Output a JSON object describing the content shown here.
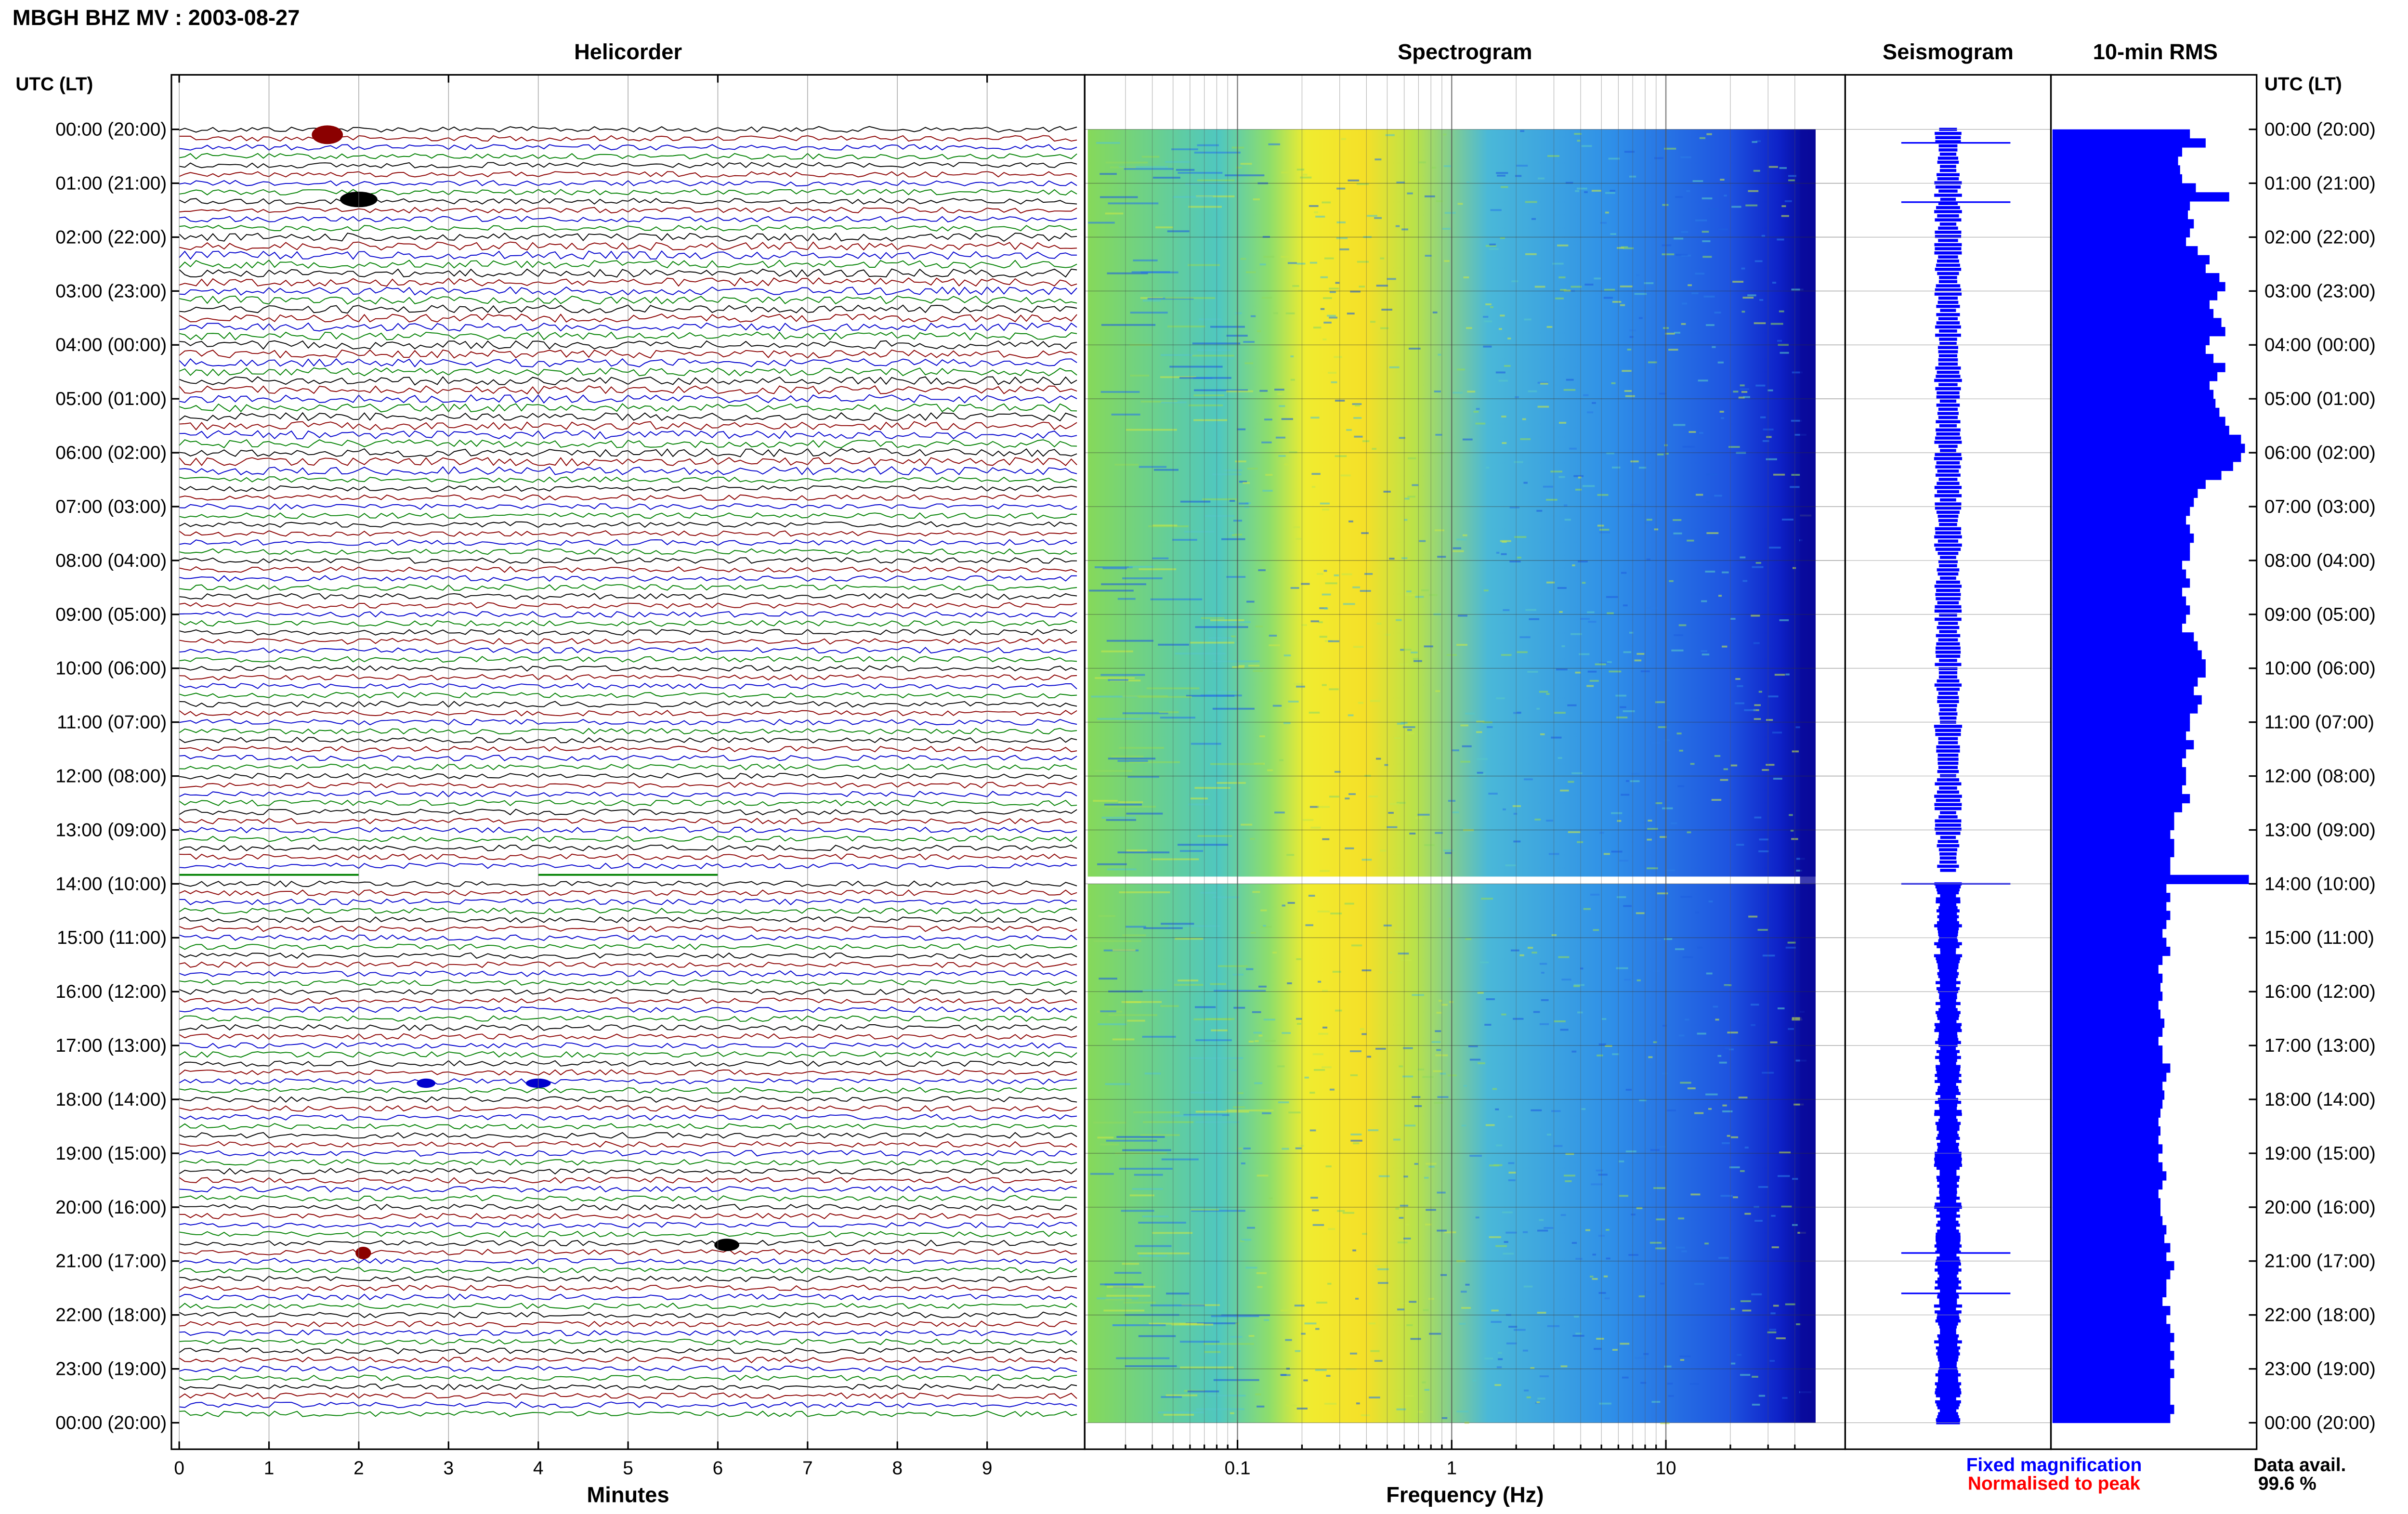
{
  "header": {
    "title": "MBGH BHZ MV : 2003-08-27",
    "utc_label_left": "UTC (LT)",
    "utc_label_right": "UTC (LT)"
  },
  "panels": {
    "helicorder": "Helicorder",
    "spectrogram": "Spectrogram",
    "seismogram": "Seismogram",
    "rms": "10-min RMS"
  },
  "axes": {
    "helicorder_xlabel": "Minutes",
    "spectrogram_xlabel": "Frequency (Hz)"
  },
  "legend": {
    "fixed": "Fixed magnification",
    "normalised": "Normalised to peak",
    "fixed_color": "#0000ff",
    "normalised_color": "#ff0000"
  },
  "availability": {
    "label": "Data avail.",
    "value": "99.6 %"
  },
  "colors": {
    "trace_cycle": [
      "#000000",
      "#8b0000",
      "#0000cd",
      "#008000"
    ],
    "rms_bar": "#0000ff",
    "seismogram": "#0000ff"
  },
  "chart_data": {
    "type": "heatmap",
    "time_ticks": [
      "00:00 (20:00)",
      "01:00 (21:00)",
      "02:00 (22:00)",
      "03:00 (23:00)",
      "04:00 (00:00)",
      "05:00 (01:00)",
      "06:00 (02:00)",
      "07:00 (03:00)",
      "08:00 (04:00)",
      "09:00 (05:00)",
      "10:00 (06:00)",
      "11:00 (07:00)",
      "12:00 (08:00)",
      "13:00 (09:00)",
      "14:00 (10:00)",
      "15:00 (11:00)",
      "16:00 (12:00)",
      "17:00 (13:00)",
      "18:00 (14:00)",
      "19:00 (15:00)",
      "20:00 (16:00)",
      "21:00 (17:00)",
      "22:00 (18:00)",
      "23:00 (19:00)",
      "00:00 (20:00)"
    ],
    "helicorder": {
      "x_ticks": [
        "0",
        "1",
        "2",
        "3",
        "4",
        "5",
        "6",
        "7",
        "8",
        "9"
      ],
      "xlim": [
        0,
        10
      ],
      "rows": 144,
      "gap_hours": [
        13.75,
        14.0
      ]
    },
    "spectrogram": {
      "x_ticks": [
        "0.1",
        "1",
        "10"
      ],
      "x_scale": "log",
      "xlim": [
        0.02,
        50
      ],
      "peak_band_hz": [
        0.25,
        0.6
      ],
      "gap_hours": [
        13.75,
        14.0
      ]
    },
    "rms_10min": {
      "xlim": [
        0,
        1
      ],
      "values": [
        0.7,
        0.78,
        0.66,
        0.64,
        0.65,
        0.66,
        0.73,
        0.9,
        0.7,
        0.69,
        0.72,
        0.7,
        0.68,
        0.74,
        0.8,
        0.78,
        0.85,
        0.88,
        0.84,
        0.8,
        0.82,
        0.86,
        0.88,
        0.8,
        0.78,
        0.82,
        0.88,
        0.84,
        0.8,
        0.82,
        0.83,
        0.85,
        0.88,
        0.9,
        0.96,
        0.98,
        0.96,
        0.92,
        0.86,
        0.78,
        0.74,
        0.72,
        0.7,
        0.68,
        0.7,
        0.72,
        0.7,
        0.7,
        0.66,
        0.68,
        0.7,
        0.66,
        0.68,
        0.7,
        0.68,
        0.66,
        0.72,
        0.74,
        0.76,
        0.78,
        0.78,
        0.74,
        0.72,
        0.76,
        0.74,
        0.7,
        0.7,
        0.68,
        0.72,
        0.68,
        0.66,
        0.68,
        0.68,
        0.66,
        0.7,
        0.66,
        0.62,
        0.62,
        0.6,
        0.62,
        0.62,
        0.6,
        0.6,
        1.0,
        0.58,
        0.6,
        0.58,
        0.6,
        0.58,
        0.56,
        0.58,
        0.6,
        0.56,
        0.54,
        0.56,
        0.55,
        0.56,
        0.54,
        0.55,
        0.57,
        0.56,
        0.54,
        0.56,
        0.56,
        0.6,
        0.58,
        0.56,
        0.57,
        0.56,
        0.55,
        0.54,
        0.55,
        0.54,
        0.56,
        0.54,
        0.56,
        0.58,
        0.56,
        0.54,
        0.55,
        0.55,
        0.56,
        0.58,
        0.57,
        0.6,
        0.58,
        0.62,
        0.6,
        0.58,
        0.58,
        0.56,
        0.6,
        0.58,
        0.6,
        0.62,
        0.6,
        0.62,
        0.6,
        0.62,
        0.6,
        0.6,
        0.6,
        0.62,
        0.6
      ]
    },
    "seismogram": {
      "gap_hours": [
        13.75,
        14.0
      ],
      "events_hours": [
        0.25,
        1.35,
        14.0,
        20.85,
        21.6
      ]
    }
  }
}
